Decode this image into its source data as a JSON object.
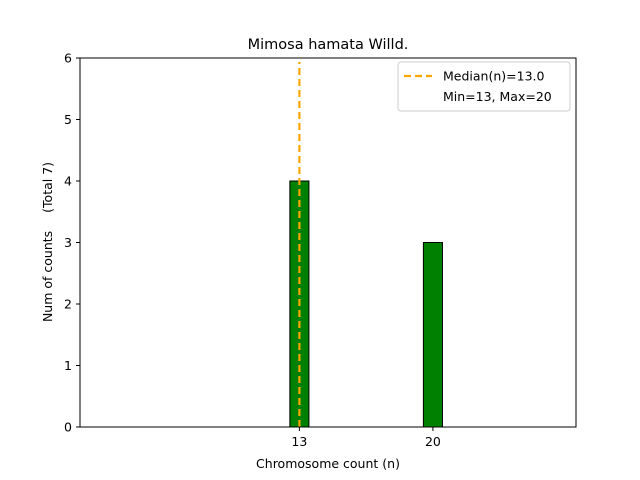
{
  "chart_data": {
    "type": "bar",
    "title": "Mimosa hamata Willd.",
    "xlabel": "Chromosome count (n)",
    "ylabel": "Num of counts",
    "ylabel_total": "(Total 7)",
    "x_ticks": [
      "13",
      "20"
    ],
    "x": [
      13,
      20
    ],
    "values": [
      4,
      3
    ],
    "xlim": [
      1.5,
      27.5
    ],
    "ylim": [
      0,
      6
    ],
    "y_ticks": [
      "0",
      "1",
      "2",
      "3",
      "4",
      "5",
      "6"
    ],
    "bar_width": 1,
    "bar_color": "#008000",
    "median": 13.0,
    "median_color": "#FFA500",
    "legend": {
      "position": "top-right",
      "entries": [
        "Median(n)=13.0",
        "Min=13, Max=20"
      ]
    },
    "grid": false
  }
}
